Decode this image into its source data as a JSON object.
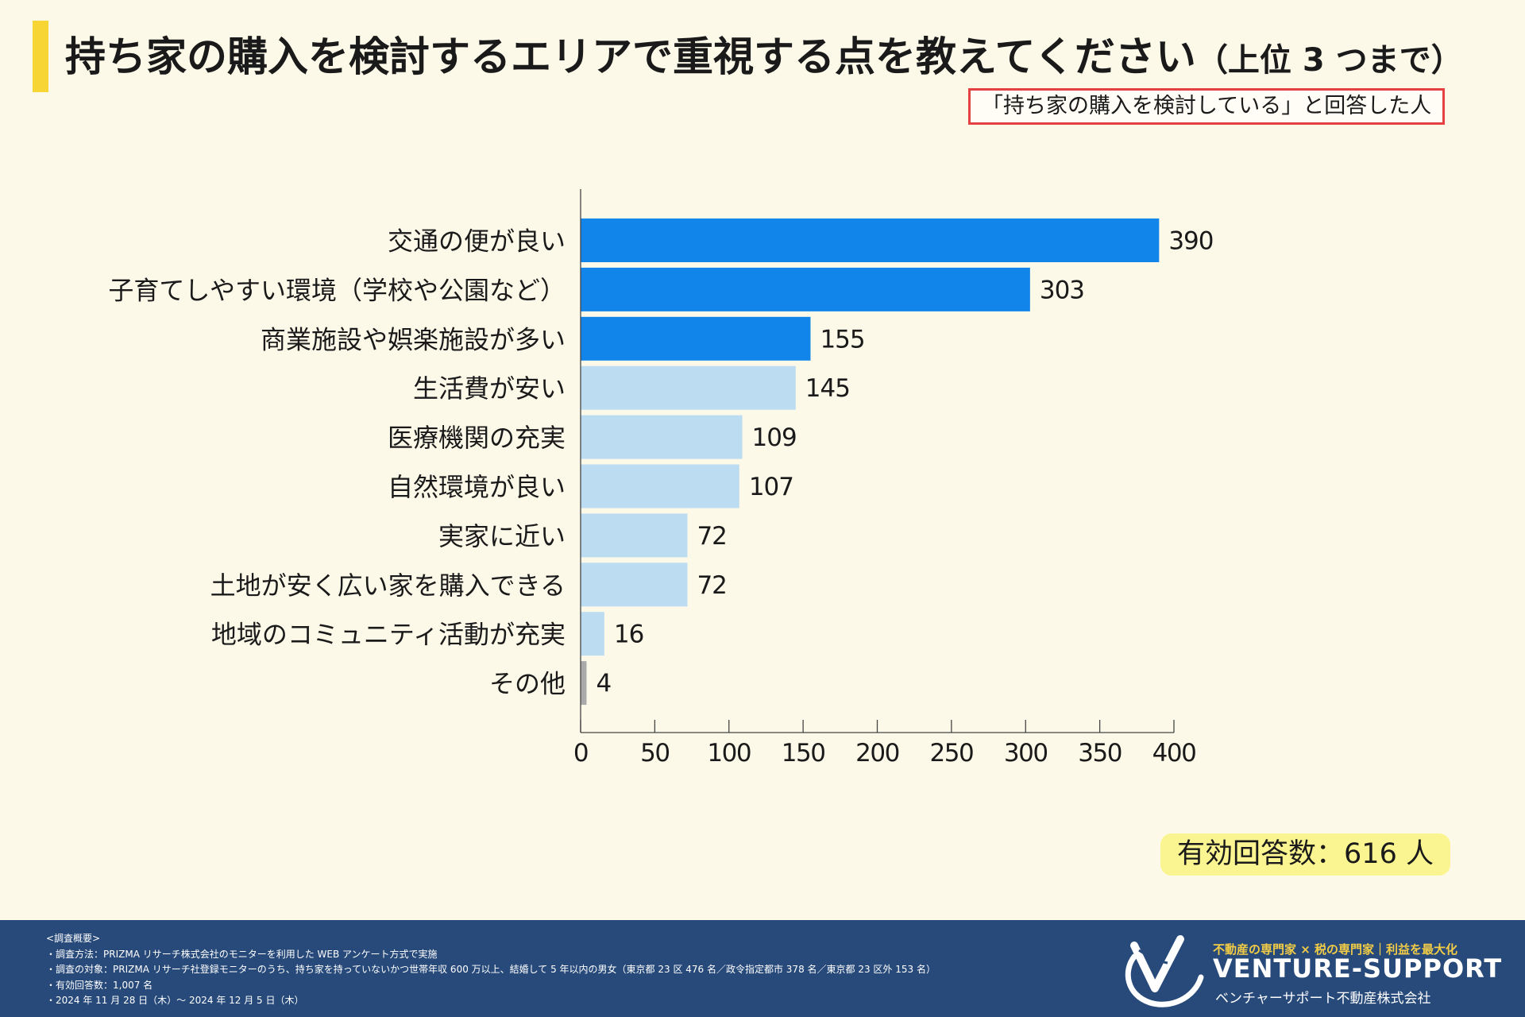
{
  "header": {
    "title": "持ち家の購入を検討するエリアで重視する点を教えてください",
    "title_suffix": "（上位 3 つまで）",
    "subtitle": "「持ち家の購入を検討している」と回答した人"
  },
  "chart_data": {
    "type": "bar",
    "orientation": "horizontal",
    "categories": [
      "交通の便が良い",
      "子育てしやすい環境（学校や公園など）",
      "商業施設や娯楽施設が多い",
      "生活費が安い",
      "医療機関の充実",
      "自然環境が良い",
      "実家に近い",
      "土地が安く広い家を購入できる",
      "地域のコミュニティ活動が充実",
      "その他"
    ],
    "values": [
      390,
      303,
      155,
      145,
      109,
      107,
      72,
      72,
      16,
      4
    ],
    "bar_colors": [
      "#1185ea",
      "#1185ea",
      "#1185ea",
      "#bcdcf2",
      "#bcdcf2",
      "#bcdcf2",
      "#bcdcf2",
      "#bcdcf2",
      "#bcdcf2",
      "#aaaaaa"
    ],
    "xlim": [
      0,
      400
    ],
    "xticks": [
      0,
      50,
      100,
      150,
      200,
      250,
      300,
      350,
      400
    ],
    "title": "持ち家の購入を検討するエリアで重視する点を教えてください（上位 3 つまで）",
    "xlabel": "",
    "ylabel": ""
  },
  "respondents": "有効回答数：616 人",
  "footer": {
    "notes": [
      "<調査概要>",
      "・調査方法：PRIZMA リサーチ株式会社のモニターを利用した WEB アンケート方式で実施",
      "・調査の対象：PRIZMA リサーチ社登録モニターのうち、持ち家を持っていないかつ世帯年収 600 万以上、結婚して 5 年以内の男女（東京都 23 区 476 名／政令指定都市 378 名／東京都 23 区外 153 名）",
      "・有効回答数：1,007 名",
      "・2024 年 11 月 28 日（木）〜 2024 年 12 月 5 日（木）"
    ],
    "brand_tagline": "不動産の専門家 × 税の専門家｜利益を最大化",
    "brand_name": "VENTURE-SUPPORT",
    "brand_company": "ベンチャーサポート不動産株式会社"
  },
  "colors": {
    "background": "#fdf9e9",
    "accent_yellow": "#f6d535",
    "subtitle_border": "#e64141",
    "bar_top": "#1185ea",
    "bar_light": "#bcdcf2",
    "bar_other": "#aaaaaa",
    "footer_bg": "#274a7a",
    "brand_gold": "#f3cc46"
  }
}
